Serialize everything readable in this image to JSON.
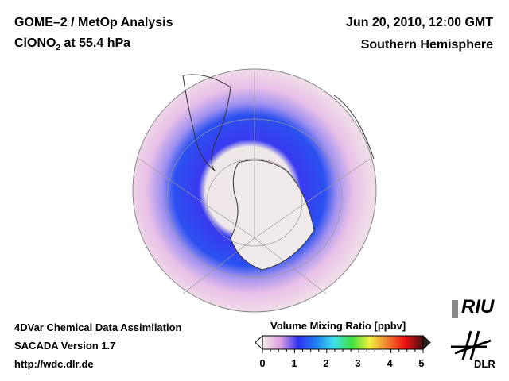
{
  "header": {
    "title_line1": "GOME–2 / MetOp Analysis",
    "species": "ClONO",
    "species_sub": "2",
    "level": " at 55.4 hPa",
    "datetime": "Jun 20, 2010, 12:00 GMT",
    "region": "Southern Hemisphere"
  },
  "footer": {
    "line1": "4DVar Chemical Data Assimilation",
    "line2": "SACADA Version 1.7",
    "line3": "http://wdc.dlr.de"
  },
  "colorbar": {
    "label": "Volume Mixing Ratio [ppbv]",
    "ticks": [
      "0",
      "1",
      "2",
      "3",
      "4",
      "5"
    ],
    "min": 0,
    "max": 5,
    "colors": [
      "#f4ece8",
      "#e0a0e0",
      "#3030f0",
      "#2080f0",
      "#40e0f0",
      "#40e040",
      "#f0f040",
      "#f08030",
      "#f01010",
      "#401010"
    ]
  },
  "logos": {
    "riu": "RIU",
    "dlr": "DLR"
  }
}
